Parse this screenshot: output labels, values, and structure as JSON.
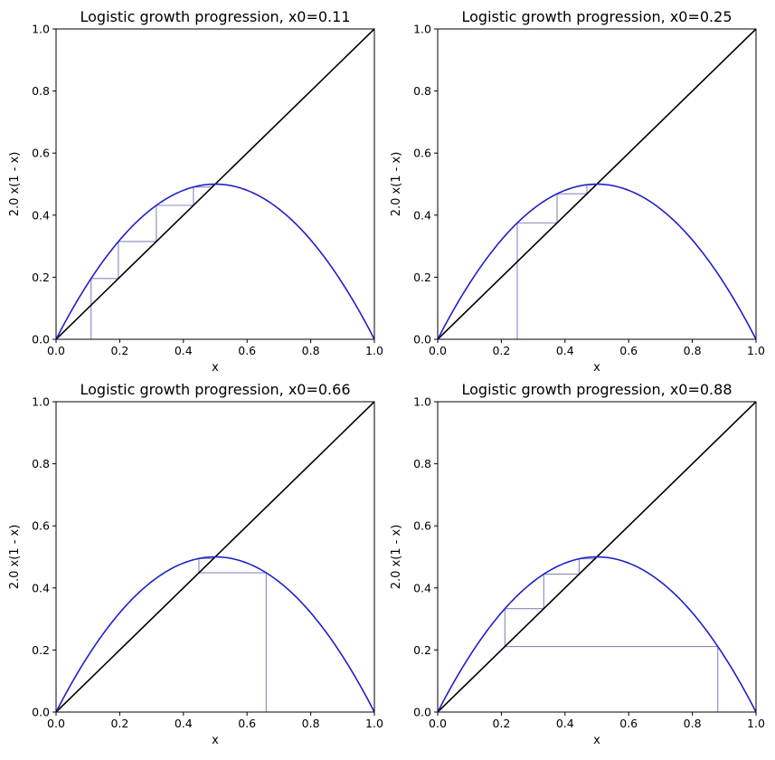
{
  "colors": {
    "parabola": "#2020c8",
    "diagonal": "#000000",
    "cobweb": "#8888c0",
    "axes": "#000000"
  },
  "chart_data": [
    {
      "type": "line",
      "title": "Logistic growth progression, x0=0.11",
      "xlabel": "x",
      "ylabel": "2.0 x(1 - x)",
      "xlim": [
        0,
        1
      ],
      "ylim": [
        0,
        1
      ],
      "xticks": [
        "0.0",
        "0.2",
        "0.4",
        "0.6",
        "0.8",
        "1.0"
      ],
      "yticks": [
        "0.0",
        "0.2",
        "0.4",
        "0.6",
        "0.8",
        "1.0"
      ],
      "r": 2.0,
      "x0": 0.11,
      "grid": false,
      "series": [
        {
          "function": "2.0*x*(1-x)",
          "x_range": [
            0,
            1
          ]
        },
        {
          "function": "x",
          "x_range": [
            0,
            1
          ]
        },
        {
          "start": 0.11
        }
      ]
    },
    {
      "type": "line",
      "title": "Logistic growth progression, x0=0.25",
      "xlabel": "x",
      "ylabel": "2.0 x(1 - x)",
      "xlim": [
        0,
        1
      ],
      "ylim": [
        0,
        1
      ],
      "xticks": [
        "0.0",
        "0.2",
        "0.4",
        "0.6",
        "0.8",
        "1.0"
      ],
      "yticks": [
        "0.0",
        "0.2",
        "0.4",
        "0.6",
        "0.8",
        "1.0"
      ],
      "r": 2.0,
      "x0": 0.25,
      "grid": false,
      "series": [
        {
          "function": "2.0*x*(1-x)",
          "x_range": [
            0,
            1
          ]
        },
        {
          "function": "x",
          "x_range": [
            0,
            1
          ]
        },
        {
          "start": 0.25
        }
      ]
    },
    {
      "type": "line",
      "title": "Logistic growth progression, x0=0.66",
      "xlabel": "x",
      "ylabel": "2.0 x(1 - x)",
      "xlim": [
        0,
        1
      ],
      "ylim": [
        0,
        1
      ],
      "xticks": [
        "0.0",
        "0.2",
        "0.4",
        "0.6",
        "0.8",
        "1.0"
      ],
      "yticks": [
        "0.0",
        "0.2",
        "0.4",
        "0.6",
        "0.8",
        "1.0"
      ],
      "r": 2.0,
      "x0": 0.66,
      "grid": false,
      "series": [
        {
          "function": "2.0*x*(1-x)",
          "x_range": [
            0,
            1
          ]
        },
        {
          "function": "x",
          "x_range": [
            0,
            1
          ]
        },
        {
          "start": 0.66
        }
      ]
    },
    {
      "type": "line",
      "title": "Logistic growth progression, x0=0.88",
      "xlabel": "x",
      "ylabel": "2.0 x(1 - x)",
      "xlim": [
        0,
        1
      ],
      "ylim": [
        0,
        1
      ],
      "xticks": [
        "0.0",
        "0.2",
        "0.4",
        "0.6",
        "0.8",
        "1.0"
      ],
      "yticks": [
        "0.0",
        "0.2",
        "0.4",
        "0.6",
        "0.8",
        "1.0"
      ],
      "r": 2.0,
      "x0": 0.88,
      "grid": false,
      "series": [
        {
          "function": "2.0*x*(1-x)",
          "x_range": [
            0,
            1
          ]
        },
        {
          "function": "x",
          "x_range": [
            0,
            1
          ]
        },
        {
          "start": 0.88
        }
      ]
    }
  ]
}
